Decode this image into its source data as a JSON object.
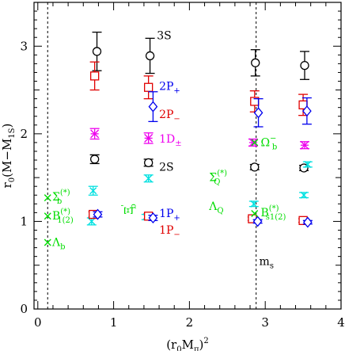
{
  "chart_data": {
    "type": "scatter",
    "xlabel": "(r₀M_π)²",
    "ylabel": "r₀(M−M_1S)",
    "xlim": [
      -0.05,
      4.0
    ],
    "ylim": [
      0,
      3.5
    ],
    "xticks": [
      "0",
      "1",
      "2",
      "3",
      "4"
    ],
    "yticks": [
      "0",
      "1",
      "2",
      "3"
    ],
    "vertical_lines": [
      {
        "x": 0.13,
        "label": ""
      },
      {
        "x": 2.88,
        "label": "m_s"
      }
    ],
    "colors": {
      "black": "#000000",
      "red": "#e00000",
      "blue": "#0000ee",
      "magenta": "#ee00ee",
      "cyan": "#00e0e0",
      "green": "#00dd00"
    },
    "series": [
      {
        "marker": "circle",
        "color": "black",
        "points": [
          {
            "x": 0.78,
            "y": 2.94,
            "err": 0.22
          },
          {
            "x": 1.48,
            "y": 2.89,
            "err": 0.2
          },
          {
            "x": 2.87,
            "y": 2.81,
            "err": 0.15
          },
          {
            "x": 3.52,
            "y": 2.78,
            "err": 0.16
          }
        ]
      },
      {
        "marker": "square",
        "color": "red",
        "points": [
          {
            "x": 0.75,
            "y": 2.66,
            "err": 0.16
          },
          {
            "x": 1.46,
            "y": 2.53,
            "err": 0.13
          },
          {
            "x": 2.86,
            "y": 2.37,
            "err": 0.12
          },
          {
            "x": 3.5,
            "y": 2.33,
            "err": 0.12
          }
        ]
      },
      {
        "marker": "diamond",
        "color": "blue",
        "points": [
          {
            "x": 1.52,
            "y": 2.31,
            "err": 0.17
          },
          {
            "x": 2.91,
            "y": 2.24,
            "err": 0.16
          },
          {
            "x": 3.55,
            "y": 2.26,
            "err": 0.15
          }
        ]
      },
      {
        "marker": "asterisk",
        "color": "magenta",
        "points": [
          {
            "x": 0.75,
            "y": 2.0,
            "err": 0.06
          },
          {
            "x": 1.46,
            "y": 1.95,
            "err": 0.06
          },
          {
            "x": 2.84,
            "y": 1.9,
            "err": 0.04
          },
          {
            "x": 3.52,
            "y": 1.87,
            "err": 0.04
          }
        ]
      },
      {
        "marker": "circle",
        "color": "black",
        "points": [
          {
            "x": 0.75,
            "y": 1.71,
            "err": 0.05
          },
          {
            "x": 1.46,
            "y": 1.67,
            "err": 0.04
          },
          {
            "x": 2.86,
            "y": 1.62,
            "err": 0.03
          },
          {
            "x": 3.51,
            "y": 1.61,
            "err": 0.03
          }
        ]
      },
      {
        "marker": "cross",
        "color": "cyan",
        "points": [
          {
            "x": 0.73,
            "y": 1.35,
            "err": 0.05
          },
          {
            "x": 0.71,
            "y": 1.0,
            "err": 0.04
          },
          {
            "x": 1.46,
            "y": 1.49,
            "err": 0.04
          },
          {
            "x": 1.43,
            "y": 1.05,
            "err": 0.03
          },
          {
            "x": 2.85,
            "y": 1.2,
            "err": 0.03
          },
          {
            "x": 3.56,
            "y": 1.65,
            "err": 0.03
          },
          {
            "x": 3.51,
            "y": 1.3,
            "err": 0.03
          }
        ]
      },
      {
        "marker": "square",
        "color": "red",
        "points": [
          {
            "x": 0.73,
            "y": 1.08,
            "err": 0.03
          },
          {
            "x": 1.46,
            "y": 1.06,
            "err": 0.03
          },
          {
            "x": 2.83,
            "y": 1.03,
            "err": 0.02
          },
          {
            "x": 3.5,
            "y": 1.01,
            "err": 0.02
          }
        ]
      },
      {
        "marker": "diamond",
        "color": "blue",
        "points": [
          {
            "x": 0.79,
            "y": 1.08,
            "err": 0.03
          },
          {
            "x": 1.52,
            "y": 1.04,
            "err": 0.03
          },
          {
            "x": 2.9,
            "y": 1.0,
            "err": 0.02
          },
          {
            "x": 3.56,
            "y": 0.99,
            "err": 0.02
          }
        ]
      },
      {
        "marker": "cross",
        "color": "green",
        "points": [
          {
            "x": 0.13,
            "y": 1.27
          },
          {
            "x": 0.13,
            "y": 1.06
          },
          {
            "x": 0.13,
            "y": 0.76
          },
          {
            "x": 2.86,
            "y": 1.09
          },
          {
            "x": 2.86,
            "y": 1.9
          }
        ]
      }
    ],
    "annotations": [
      {
        "text": "3S",
        "sub": "",
        "x": 1.57,
        "y": 3.08,
        "color": "black"
      },
      {
        "text": "2P",
        "sub": "+",
        "x": 1.6,
        "y": 2.5,
        "color": "blue"
      },
      {
        "text": "2P",
        "sub": "−",
        "x": 1.6,
        "y": 2.18,
        "color": "red"
      },
      {
        "text": "1D",
        "sub": "±",
        "x": 1.6,
        "y": 1.9,
        "color": "magenta"
      },
      {
        "text": "2S",
        "sub": "",
        "x": 1.6,
        "y": 1.58,
        "color": "black"
      },
      {
        "text": "1P",
        "sub": "+",
        "x": 1.6,
        "y": 1.05,
        "color": "blue"
      },
      {
        "text": "1P",
        "sub": "−",
        "x": 1.6,
        "y": 0.86,
        "color": "red"
      },
      {
        "text": "Σ",
        "sub": "b",
        "sup": "(*)",
        "x": 0.19,
        "y": 1.24,
        "color": "green"
      },
      {
        "text": "B",
        "sub": "1(2)",
        "sup": "(*)",
        "x": 0.19,
        "y": 1.02,
        "color": "green"
      },
      {
        "text": "Λ",
        "sub": "b",
        "x": 0.19,
        "y": 0.72,
        "color": "green"
      },
      {
        "text": "Ξ",
        "sub": "b",
        "sup": "'",
        "x": 1.25,
        "y": 1.08,
        "color": "green",
        "rotate": -90
      },
      {
        "text": "Σ",
        "sub": "Q",
        "sup": "(*)",
        "x": 2.26,
        "y": 1.46,
        "color": "green"
      },
      {
        "text": "Λ",
        "sub": "Q",
        "x": 2.26,
        "y": 1.13,
        "color": "green"
      },
      {
        "text": "Ω",
        "sub": "b",
        "sup": "−",
        "x": 2.94,
        "y": 1.86,
        "color": "green"
      },
      {
        "text": "B",
        "sub": "s1(2)",
        "sup": "(*)",
        "x": 2.94,
        "y": 1.06,
        "color": "green"
      },
      {
        "text": "m",
        "sub": "s",
        "x": 2.92,
        "y": 0.5,
        "color": "black"
      }
    ]
  }
}
